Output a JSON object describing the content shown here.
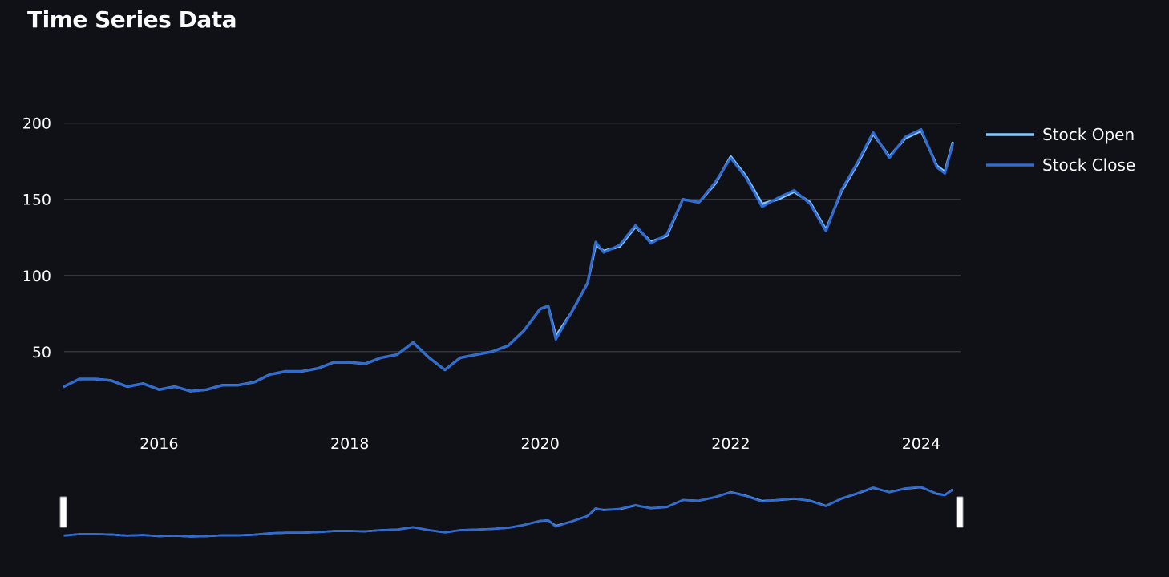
{
  "page": {
    "title": "Time Series Data"
  },
  "colors": {
    "background": "#0f1117",
    "grid": "#3a3d45",
    "text": "#fafafa",
    "stock_open": "#83c9ff",
    "stock_close": "#2f6bd1",
    "range_handle": "#ffffff"
  },
  "chart_data": {
    "type": "line",
    "title": "",
    "xlabel": "",
    "ylabel": "",
    "x_tick_labels": [
      "2016",
      "2018",
      "2020",
      "2022",
      "2024"
    ],
    "y_tick_labels": [
      "50",
      "100",
      "150",
      "200"
    ],
    "xlim": [
      "2015-01-02",
      "2024-05-31"
    ],
    "ylim": [
      2,
      223
    ],
    "grid": true,
    "legend": "right",
    "range_slider": true,
    "x": [
      "2015-01",
      "2015-03",
      "2015-05",
      "2015-07",
      "2015-09",
      "2015-11",
      "2016-01",
      "2016-03",
      "2016-05",
      "2016-07",
      "2016-09",
      "2016-11",
      "2017-01",
      "2017-03",
      "2017-05",
      "2017-07",
      "2017-09",
      "2017-11",
      "2018-01",
      "2018-03",
      "2018-05",
      "2018-07",
      "2018-09",
      "2018-11",
      "2019-01",
      "2019-03",
      "2019-05",
      "2019-07",
      "2019-09",
      "2019-11",
      "2020-01",
      "2020-02",
      "2020-03",
      "2020-05",
      "2020-07",
      "2020-08",
      "2020-09",
      "2020-11",
      "2021-01",
      "2021-03",
      "2021-05",
      "2021-07",
      "2021-09",
      "2021-11",
      "2022-01",
      "2022-03",
      "2022-05",
      "2022-07",
      "2022-09",
      "2022-11",
      "2023-01",
      "2023-03",
      "2023-05",
      "2023-07",
      "2023-09",
      "2023-11",
      "2024-01",
      "2024-03",
      "2024-04",
      "2024-05"
    ],
    "series": [
      {
        "name": "Stock Open",
        "values": [
          27,
          32,
          32,
          31,
          27,
          29,
          25,
          27,
          24,
          25,
          28,
          28,
          30,
          35,
          37,
          37,
          39,
          43,
          43,
          42,
          46,
          48,
          56,
          46,
          38,
          46,
          48,
          50,
          54,
          64,
          78,
          80,
          60,
          76,
          95,
          120,
          116,
          119,
          132,
          122,
          126,
          150,
          148,
          160,
          178,
          165,
          147,
          150,
          155,
          148,
          130,
          155,
          173,
          193,
          178,
          190,
          195,
          172,
          168,
          187
        ]
      },
      {
        "name": "Stock Close",
        "values": [
          27,
          32,
          32,
          31,
          27,
          29,
          25,
          27,
          24,
          25,
          28,
          28,
          30,
          35,
          37,
          37,
          39,
          43,
          43,
          42,
          46,
          48,
          56,
          46,
          38,
          46,
          48,
          50,
          54,
          64,
          78,
          80,
          58,
          76,
          95,
          122,
          115,
          120,
          133,
          121,
          127,
          150,
          148,
          161,
          177,
          164,
          145,
          151,
          156,
          147,
          129,
          156,
          174,
          194,
          177,
          191,
          196,
          171,
          167,
          186
        ]
      }
    ]
  }
}
